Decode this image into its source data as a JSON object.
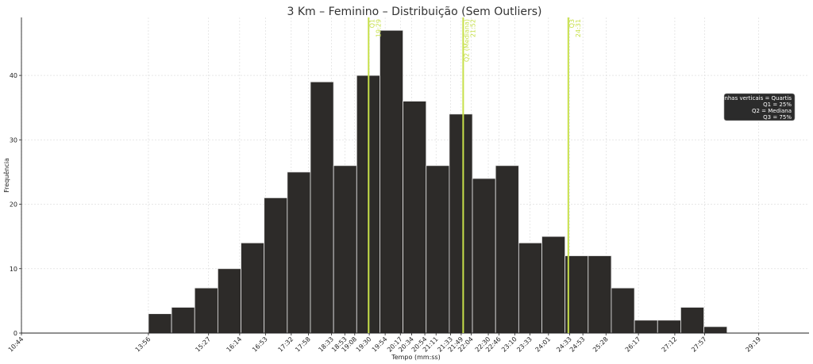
{
  "colors": {
    "bar_fill": "#2d2b29",
    "bar_edge": "#e8e8e8",
    "quartile_line": "#c7e04a",
    "legend_bg": "#2b2b2b",
    "legend_text": "#ffffff"
  },
  "chart_data": {
    "type": "bar",
    "title": "3 Km – Feminino – Distribuição (Sem Outliers)",
    "xlabel": "Tempo (mm:ss)",
    "ylabel": "Frequência",
    "ylim": [
      0,
      49
    ],
    "yticks": [
      0,
      10,
      20,
      30,
      40
    ],
    "grid": true,
    "xlim_seconds": [
      644,
      1835
    ],
    "bin_edges_seconds": [
      836,
      871,
      906,
      941,
      976,
      1011,
      1046,
      1081,
      1116,
      1151,
      1186,
      1221,
      1256,
      1291,
      1326,
      1361,
      1396,
      1431,
      1466,
      1501,
      1536,
      1571,
      1606,
      1641,
      1676,
      1711
    ],
    "values": [
      3,
      4,
      7,
      10,
      14,
      21,
      25,
      39,
      26,
      40,
      47,
      36,
      26,
      34,
      24,
      26,
      14,
      15,
      12,
      12,
      7,
      2,
      2,
      4,
      1
    ],
    "xtick_labels": [
      "10:44",
      "13:56",
      "15:27",
      "16:14",
      "16:53",
      "17:32",
      "17:58",
      "18:33",
      "18:53",
      "19:08",
      "19:30",
      "19:54",
      "20:17",
      "20:34",
      "20:54",
      "21:11",
      "21:33",
      "21:49",
      "22:04",
      "22:30",
      "22:46",
      "23:10",
      "23:33",
      "24:01",
      "24:33",
      "24:53",
      "25:28",
      "26:17",
      "27:12",
      "27:57",
      "29:19"
    ],
    "xtick_seconds": [
      644,
      836,
      927,
      974,
      1013,
      1052,
      1078,
      1113,
      1133,
      1148,
      1170,
      1194,
      1217,
      1234,
      1254,
      1271,
      1293,
      1309,
      1324,
      1350,
      1366,
      1390,
      1413,
      1441,
      1473,
      1493,
      1528,
      1577,
      1632,
      1677,
      1759
    ],
    "quartiles": [
      {
        "name": "Q1",
        "label": "19:29",
        "seconds": 1169
      },
      {
        "name": "Q2 (Mediana)",
        "label": "21:52",
        "seconds": 1312
      },
      {
        "name": "Q3",
        "label": "24:31",
        "seconds": 1471
      }
    ],
    "legend": {
      "placement": "right",
      "lines": [
        "Linhas verticais = Quartis",
        "Q1 = 25%",
        "Q2 = Mediana",
        "Q3 = 75%"
      ]
    }
  }
}
